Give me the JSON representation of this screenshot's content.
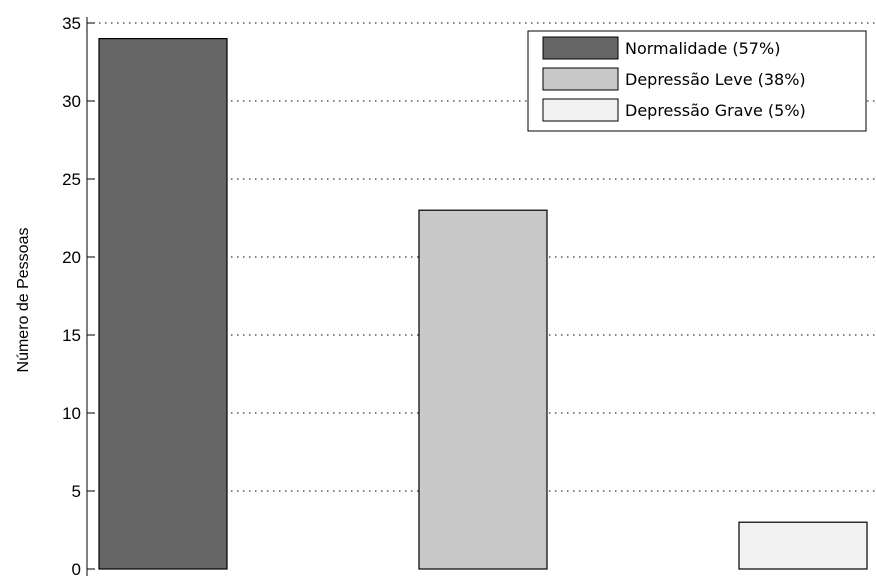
{
  "chart_data": {
    "type": "bar",
    "categories": [
      "Normalidade",
      "Depressão Leve",
      "Depressão Grave"
    ],
    "values": [
      34,
      23,
      3
    ],
    "colors": [
      "#666666",
      "#c8c8c8",
      "#f2f2f2"
    ],
    "title": "",
    "xlabel": "",
    "ylabel": "Número de Pessoas",
    "ylim": [
      0,
      35
    ],
    "yticks": [
      0,
      5,
      10,
      15,
      20,
      25,
      30,
      35
    ],
    "ytick_labels": [
      "0",
      "5",
      "10",
      "15",
      "20",
      "25",
      "30",
      "35"
    ],
    "grid": "horizontal dotted",
    "legend": {
      "placement": "top-right",
      "entries": [
        {
          "label": "Normalidade (57%)",
          "color": "#666666"
        },
        {
          "label": "Depressão Leve (38%)",
          "color": "#c8c8c8"
        },
        {
          "label": "Depressão Grave (5%)",
          "color": "#f2f2f2"
        }
      ]
    }
  }
}
